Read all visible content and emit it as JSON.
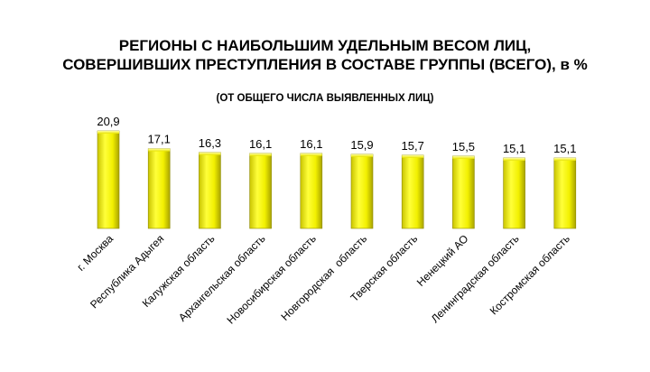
{
  "chart_data": {
    "type": "bar",
    "title_line1": "РЕГИОНЫ С НАИБОЛЬШИМ УДЕЛЬНЫМ ВЕСОМ ЛИЦ,",
    "title_line2": "СОВЕРШИВШИХ ПРЕСТУПЛЕНИЯ В СОСТАВЕ ГРУППЫ (ВСЕГО), в %",
    "subtitle": "(ОТ ОБЩЕГО ЧИСЛА ВЫЯВЛЕННЫХ ЛИЦ)",
    "categories": [
      "г. Москва",
      "Республика Адыгея",
      "Калужская область",
      "Архангельская область",
      "Новосибирская область",
      "Новгородская  область",
      "Тверская область",
      "Ненецкий АО",
      "Ленинградская область",
      "Костромская область"
    ],
    "values": [
      20.9,
      17.1,
      16.3,
      16.1,
      16.1,
      15.9,
      15.7,
      15.5,
      15.1,
      15.1
    ],
    "value_labels": [
      "20,9",
      "17,1",
      "16,3",
      "16,1",
      "16,1",
      "15,9",
      "15,7",
      "15,5",
      "15,1",
      "15,1"
    ],
    "ylim": [
      0,
      22
    ],
    "grid": false,
    "legend": "none",
    "bar_color": "#f2f000"
  }
}
